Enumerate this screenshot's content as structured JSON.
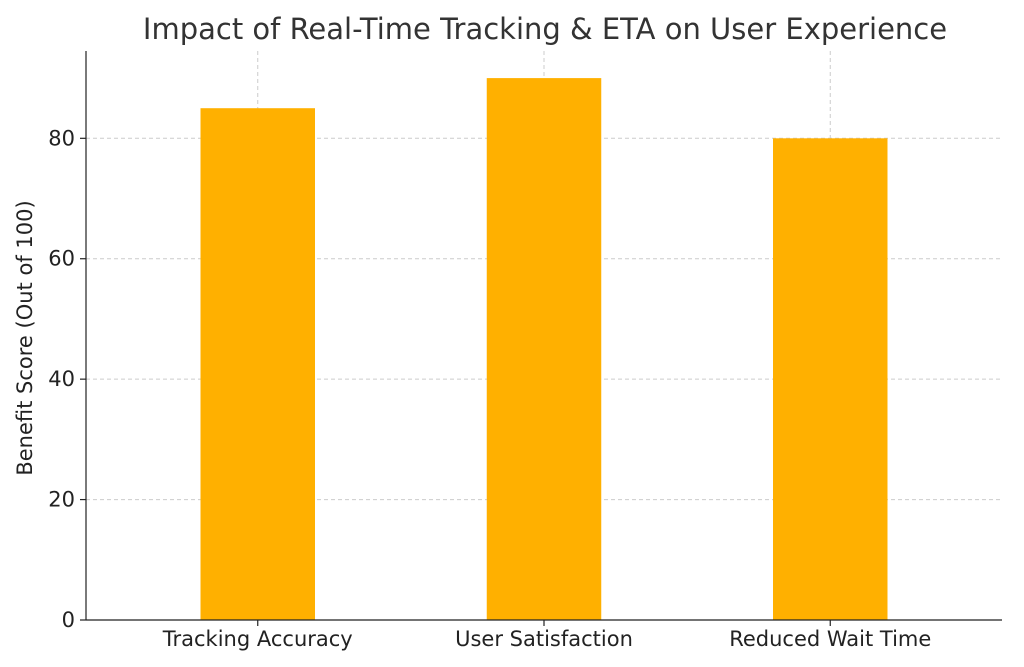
{
  "chart_data": {
    "type": "bar",
    "title": "Impact of Real-Time Tracking & ETA on User Experience",
    "xlabel": "",
    "ylabel": "Benefit Score (Out of 100)",
    "categories": [
      "Tracking Accuracy",
      "User Satisfaction",
      "Reduced Wait Time"
    ],
    "values": [
      85,
      90,
      80
    ],
    "ylim": [
      0,
      94.5
    ],
    "yticks": [
      0,
      20,
      40,
      60,
      80
    ],
    "grid": true,
    "legend": "none",
    "bar_color": "#FFB000",
    "grid_color": "#cccccc"
  }
}
